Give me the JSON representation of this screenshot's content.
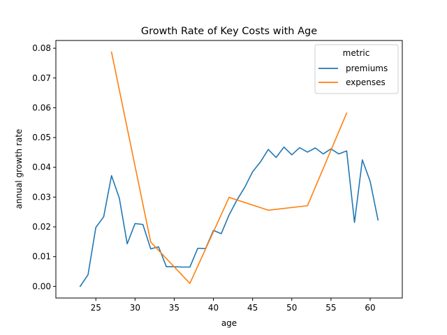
{
  "chart_data": {
    "type": "line",
    "title": "Growth Rate of Key Costs with Age",
    "xlabel": "age",
    "ylabel": "annual growth rate",
    "xlim": [
      19.9,
      64.1
    ],
    "ylim": [
      -0.0039,
      0.0826
    ],
    "xticks": [
      25,
      30,
      35,
      40,
      45,
      50,
      55,
      60
    ],
    "yticks": [
      0.0,
      0.01,
      0.02,
      0.03,
      0.04,
      0.05,
      0.06,
      0.07,
      0.08
    ],
    "ytick_labels": [
      "0.00",
      "0.01",
      "0.02",
      "0.03",
      "0.04",
      "0.05",
      "0.06",
      "0.07",
      "0.08"
    ],
    "grid": false,
    "legend": {
      "title": "metric",
      "placement": "top-right"
    },
    "series": [
      {
        "name": "premiums",
        "color": "#1f77b4",
        "x": [
          23,
          24,
          25,
          26,
          27,
          28,
          29,
          30,
          31,
          32,
          33,
          34,
          35,
          36,
          37,
          38,
          39,
          40,
          41,
          42,
          43,
          44,
          45,
          46,
          47,
          48,
          49,
          50,
          51,
          52,
          53,
          54,
          55,
          56,
          57,
          58,
          59,
          60,
          61
        ],
        "y": [
          0.0,
          0.0039,
          0.0198,
          0.0234,
          0.0372,
          0.0296,
          0.0143,
          0.0211,
          0.0208,
          0.0126,
          0.0133,
          0.0066,
          0.0066,
          0.0065,
          0.0065,
          0.0128,
          0.0127,
          0.0188,
          0.0177,
          0.024,
          0.029,
          0.0333,
          0.0385,
          0.0418,
          0.046,
          0.0433,
          0.0468,
          0.0442,
          0.0466,
          0.0451,
          0.0465,
          0.0445,
          0.0462,
          0.0445,
          0.0455,
          0.0215,
          0.0425,
          0.0353,
          0.0223
        ]
      },
      {
        "name": "expenses",
        "color": "#ff7f0e",
        "x": [
          27,
          32,
          37,
          42,
          47,
          52,
          57
        ],
        "y": [
          0.0787,
          0.0149,
          0.001,
          0.0299,
          0.0256,
          0.0271,
          0.0582
        ]
      }
    ]
  }
}
